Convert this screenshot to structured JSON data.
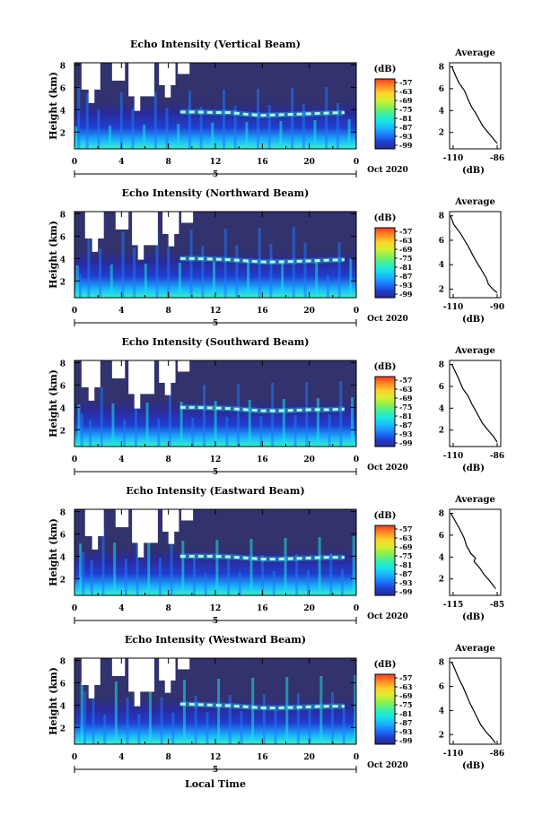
{
  "figure": {
    "xlabel": "Local Time",
    "date_label": "Oct 2020",
    "day_label": "5",
    "colorbar_unit": "(dB)",
    "colorbar_ticks": [
      "-57",
      "-63",
      "-69",
      "-75",
      "-81",
      "-87",
      "-93",
      "-99"
    ],
    "colors": {
      "background": "#32326e",
      "scale": [
        "#2a2a8c",
        "#1f3fd0",
        "#1e78ff",
        "#1ab6ff",
        "#18e6e6",
        "#3cf0a0",
        "#8cf050",
        "#d8f030",
        "#ffd02a",
        "#ff8a20",
        "#ff3a20"
      ]
    }
  },
  "chart_data": [
    {
      "type": "heatmap",
      "title": "Echo Intensity (Vertical Beam)",
      "ylabel": "Height (km)",
      "x_ticks": [
        "0",
        "4",
        "8",
        "12",
        "16",
        "20",
        "0"
      ],
      "x_range": [
        0,
        24
      ],
      "y_ticks": [
        "2",
        "4",
        "6",
        "8"
      ],
      "y_range": [
        0.5,
        8.2
      ],
      "color_range": [
        -99,
        -57
      ],
      "bright_layer_height_km": [
        3.8,
        3.8,
        3.75,
        3.75,
        3.6,
        3.5,
        3.55,
        3.6,
        3.65,
        3.7,
        3.75
      ],
      "profile": {
        "title": "Average",
        "xlabel": "(dB)",
        "x_ticks": [
          "-110",
          "-86"
        ],
        "y_ticks": [
          "2",
          "4",
          "6",
          "8"
        ],
        "xlim": [
          -110,
          -86
        ],
        "ylim": [
          0.5,
          8.2
        ],
        "x": [
          -111,
          -109,
          -107,
          -104,
          -102,
          -100,
          -98,
          -96,
          -94,
          -91,
          -88,
          -86
        ],
        "y": [
          8.0,
          7.2,
          6.5,
          5.8,
          5.0,
          4.3,
          3.8,
          3.2,
          2.6,
          2.0,
          1.4,
          1.0
        ]
      }
    },
    {
      "type": "heatmap",
      "title": "Echo Intensity (Northward Beam)",
      "ylabel": "Height (km)",
      "x_ticks": [
        "0",
        "4",
        "8",
        "12",
        "16",
        "20",
        "0"
      ],
      "x_range": [
        0,
        24
      ],
      "y_ticks": [
        "2",
        "4",
        "6",
        "8"
      ],
      "y_range": [
        0.5,
        8.2
      ],
      "color_range": [
        -99,
        -57
      ],
      "bright_layer_height_km": [
        4.0,
        4.0,
        3.95,
        3.9,
        3.8,
        3.7,
        3.7,
        3.75,
        3.8,
        3.85,
        3.9
      ],
      "profile": {
        "title": "Average",
        "xlabel": "(dB)",
        "x_ticks": [
          "-110",
          "-90"
        ],
        "y_ticks": [
          "2",
          "4",
          "6",
          "8"
        ],
        "xlim": [
          -110,
          -90
        ],
        "ylim": [
          1.3,
          8.2
        ],
        "x": [
          -112,
          -110,
          -107,
          -105,
          -103,
          -101,
          -99,
          -97,
          -95,
          -94,
          -92,
          -90
        ],
        "y": [
          8.0,
          7.3,
          6.6,
          6.0,
          5.4,
          4.7,
          4.1,
          3.5,
          2.9,
          2.4,
          2.0,
          1.7
        ]
      }
    },
    {
      "type": "heatmap",
      "title": "Echo Intensity (Southward Beam)",
      "ylabel": "Height (km)",
      "x_ticks": [
        "0",
        "4",
        "8",
        "12",
        "16",
        "20",
        "0"
      ],
      "x_range": [
        0,
        24
      ],
      "y_ticks": [
        "2",
        "4",
        "6",
        "8"
      ],
      "y_range": [
        0.5,
        8.2
      ],
      "color_range": [
        -99,
        -57
      ],
      "bright_layer_height_km": [
        4.0,
        4.0,
        3.95,
        3.9,
        3.8,
        3.7,
        3.7,
        3.75,
        3.8,
        3.8,
        3.85
      ],
      "profile": {
        "title": "Average",
        "xlabel": "(dB)",
        "x_ticks": [
          "-110",
          "-86"
        ],
        "y_ticks": [
          "2",
          "4",
          "6",
          "8"
        ],
        "xlim": [
          -110,
          -86
        ],
        "ylim": [
          0.5,
          8.2
        ],
        "x": [
          -111,
          -109,
          -107,
          -105,
          -102,
          -100,
          -98,
          -96,
          -94,
          -91,
          -88,
          -86
        ],
        "y": [
          8.0,
          7.3,
          6.6,
          5.8,
          5.1,
          4.4,
          3.8,
          3.2,
          2.6,
          2.0,
          1.4,
          0.9
        ]
      }
    },
    {
      "type": "heatmap",
      "title": "Echo Intensity (Eastward Beam)",
      "ylabel": "Height (km)",
      "x_ticks": [
        "0",
        "4",
        "8",
        "12",
        "16",
        "20",
        "0"
      ],
      "x_range": [
        0,
        24
      ],
      "y_ticks": [
        "2",
        "4",
        "6",
        "8"
      ],
      "y_range": [
        0.5,
        8.2
      ],
      "color_range": [
        -99,
        -57
      ],
      "bright_layer_height_km": [
        4.0,
        4.0,
        4.0,
        3.95,
        3.85,
        3.75,
        3.75,
        3.8,
        3.85,
        3.9,
        3.9
      ],
      "profile": {
        "title": "Average",
        "xlabel": "(dB)",
        "x_ticks": [
          "-115",
          "-85"
        ],
        "y_ticks": [
          "2",
          "4",
          "6",
          "8"
        ],
        "xlim": [
          -115,
          -85
        ],
        "ylim": [
          0.5,
          8.2
        ],
        "x": [
          -117,
          -114,
          -111,
          -108,
          -106,
          -103,
          -100,
          -101,
          -97,
          -94,
          -90,
          -86
        ],
        "y": [
          8.0,
          7.3,
          6.6,
          5.8,
          5.0,
          4.3,
          3.9,
          3.6,
          3.0,
          2.4,
          1.8,
          1.1
        ]
      }
    },
    {
      "type": "heatmap",
      "title": "Echo Intensity (Westward Beam)",
      "ylabel": "Height (km)",
      "x_ticks": [
        "0",
        "4",
        "8",
        "12",
        "16",
        "20",
        "0"
      ],
      "x_range": [
        0,
        24
      ],
      "y_ticks": [
        "2",
        "4",
        "6",
        "8"
      ],
      "y_range": [
        0.5,
        8.2
      ],
      "color_range": [
        -99,
        -57
      ],
      "bright_layer_height_km": [
        4.1,
        4.05,
        4.0,
        3.95,
        3.85,
        3.75,
        3.75,
        3.8,
        3.85,
        3.9,
        3.9
      ],
      "profile": {
        "title": "Average",
        "xlabel": "(dB)",
        "x_ticks": [
          "-110",
          "-86"
        ],
        "y_ticks": [
          "2",
          "4",
          "6",
          "8"
        ],
        "xlim": [
          -110,
          -86
        ],
        "ylim": [
          1.2,
          8.2
        ],
        "x": [
          -111,
          -109,
          -107,
          -105,
          -103,
          -101,
          -99,
          -97,
          -95,
          -92,
          -89,
          -87
        ],
        "y": [
          8.0,
          7.3,
          6.6,
          6.0,
          5.3,
          4.6,
          4.0,
          3.4,
          2.8,
          2.2,
          1.7,
          1.3
        ]
      }
    }
  ]
}
